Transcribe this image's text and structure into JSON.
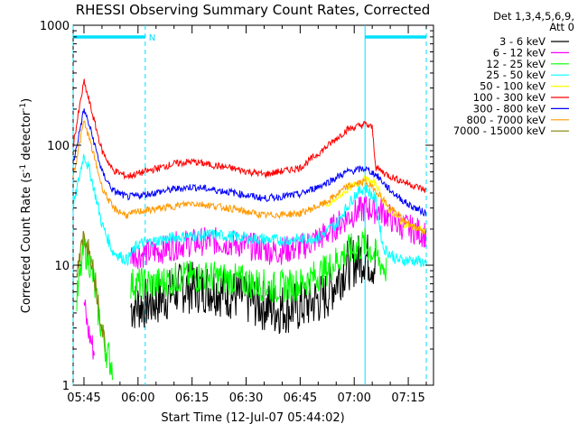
{
  "chart_data": {
    "type": "line",
    "title": "RHESSI Observing Summary Count Rates, Corrected",
    "xlabel": "Start Time (12-Jul-07 05:44:02)",
    "ylabel_main": "Corrected Count Rate (s",
    "ylabel_sup1": "-1",
    "ylabel_mid": " detector",
    "ylabel_sup2": "-1",
    "ylabel_end": ")",
    "yscale": "log",
    "ylim": [
      1,
      1000
    ],
    "y_ticks": [
      "1",
      "10",
      "100",
      "1000"
    ],
    "xlim": [
      "05:42",
      "07:22"
    ],
    "x_ticks": [
      "05:45",
      "06:00",
      "06:15",
      "06:30",
      "06:45",
      "07:00",
      "07:15"
    ],
    "legend_header": [
      "Det 1,3,4,5,6,9,",
      "Att 0"
    ],
    "legend_placement": "right",
    "flag_label": "N",
    "flag_bars": [
      [
        "05:42",
        "06:02"
      ],
      [
        "07:03",
        "07:20"
      ]
    ],
    "flag_color": "#00e0ff",
    "dashed_markers": [
      "05:42",
      "06:02",
      "07:20"
    ],
    "solid_markers": [
      "07:03"
    ],
    "series": [
      {
        "name": "3 - 6 keV",
        "color": "#000000",
        "noise": 0.22,
        "x": [
          "05:58",
          "06:05",
          "06:12",
          "06:20",
          "06:28",
          "06:38",
          "06:45",
          "06:52",
          "06:58",
          "07:03",
          "07:06"
        ],
        "values": [
          4.5,
          5,
          6.5,
          6.5,
          5.5,
          4.3,
          4.5,
          5.5,
          10,
          12,
          10
        ]
      },
      {
        "name": "6 - 12 keV",
        "color": "#ff00ff",
        "noise": 0.12,
        "x": [
          "05:45",
          "05:46",
          "05:48"
        ],
        "values": [
          5,
          3,
          1.8
        ],
        "x2": [
          "05:58",
          "06:05",
          "06:12",
          "06:20",
          "06:28",
          "06:38",
          "06:45",
          "06:52",
          "06:58",
          "07:03",
          "07:08",
          "07:12",
          "07:20"
        ],
        "values2": [
          12,
          13,
          15,
          16,
          15,
          13,
          14,
          18,
          25,
          30,
          28,
          22,
          18
        ]
      },
      {
        "name": "12 - 25 keV",
        "color": "#00ff00",
        "noise": 0.14,
        "x": [
          "05:43",
          "05:45",
          "05:47",
          "05:49",
          "05:51",
          "05:53"
        ],
        "values": [
          5,
          14,
          10,
          4,
          2,
          1.4
        ],
        "x2": [
          "05:58",
          "06:05",
          "06:12",
          "06:20",
          "06:28",
          "06:38",
          "06:45",
          "06:52",
          "06:58",
          "07:03",
          "07:06",
          "07:09"
        ],
        "values2": [
          7,
          7,
          8,
          8,
          7.5,
          6.5,
          7,
          9,
          13,
          15,
          12,
          9
        ]
      },
      {
        "name": "25 - 50 keV",
        "color": "#00ffff",
        "noise": 0.05,
        "x": [
          "05:42",
          "05:45",
          "05:47",
          "05:50",
          "05:53",
          "05:57",
          "06:00",
          "06:10",
          "06:20",
          "06:30",
          "06:40",
          "06:50",
          "06:55",
          "07:00",
          "07:03",
          "07:06",
          "07:08",
          "07:12",
          "07:16",
          "07:20"
        ],
        "values": [
          30,
          85,
          55,
          22,
          13,
          11,
          15,
          17,
          18,
          17,
          16,
          17,
          22,
          38,
          45,
          35,
          14,
          11,
          11,
          10.5
        ]
      },
      {
        "name": "50 - 100 keV",
        "color": "#ffff00",
        "noise": 0.03,
        "x": [
          "06:52",
          "06:57",
          "07:00",
          "07:03",
          "07:06",
          "07:09",
          "07:14",
          "07:20"
        ],
        "values": [
          30,
          40,
          47,
          52,
          48,
          30,
          22,
          19
        ]
      },
      {
        "name": "100 - 300 keV",
        "color": "#ff0000",
        "noise": 0.03,
        "x": [
          "05:42",
          "05:45",
          "05:47",
          "05:50",
          "05:53",
          "05:57",
          "06:00",
          "06:10",
          "06:15",
          "06:25",
          "06:35",
          "06:45",
          "06:52",
          "06:58",
          "07:03",
          "07:05",
          "07:06",
          "07:10",
          "07:15",
          "07:20"
        ],
        "values": [
          100,
          340,
          200,
          90,
          62,
          55,
          58,
          70,
          73,
          65,
          57,
          65,
          95,
          135,
          150,
          140,
          65,
          55,
          48,
          42
        ]
      },
      {
        "name": "300 - 800 keV",
        "color": "#0000ff",
        "noise": 0.03,
        "x": [
          "05:42",
          "05:45",
          "05:47",
          "05:50",
          "05:53",
          "05:57",
          "06:00",
          "06:10",
          "06:15",
          "06:25",
          "06:35",
          "06:45",
          "06:52",
          "06:58",
          "07:03",
          "07:06",
          "07:10",
          "07:15",
          "07:20"
        ],
        "values": [
          70,
          200,
          130,
          60,
          42,
          37,
          38,
          43,
          45,
          41,
          36,
          39,
          48,
          60,
          64,
          57,
          42,
          32,
          27
        ]
      },
      {
        "name": "800 - 7000 keV",
        "color": "#ff9900",
        "noise": 0.03,
        "x": [
          "05:42",
          "05:45",
          "05:47",
          "05:50",
          "05:53",
          "05:57",
          "06:00",
          "06:10",
          "06:15",
          "06:25",
          "06:35",
          "06:45",
          "06:52",
          "06:58",
          "07:03",
          "07:06",
          "07:10",
          "07:15",
          "07:20"
        ],
        "values": [
          55,
          160,
          100,
          45,
          30,
          26,
          28,
          31,
          33,
          30,
          26,
          27,
          33,
          45,
          50,
          42,
          30,
          22,
          19
        ]
      },
      {
        "name": "7000 - 15000 keV",
        "color": "#808000",
        "noise": 0.1,
        "x": [
          "05:43",
          "05:45",
          "05:47",
          "05:49",
          "05:51"
        ],
        "values": [
          8,
          18,
          12,
          5,
          2
        ]
      }
    ]
  }
}
